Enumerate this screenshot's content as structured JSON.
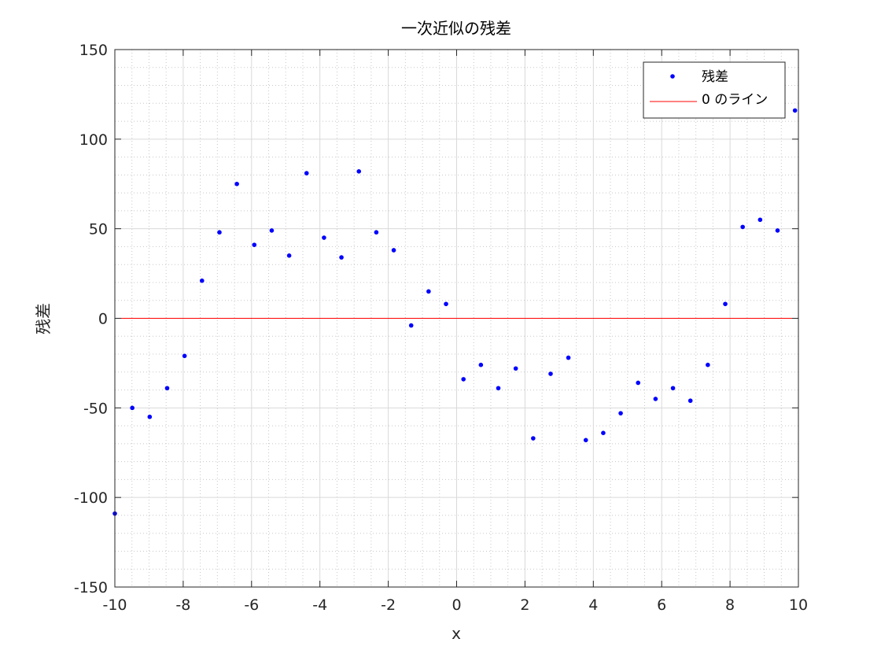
{
  "chart_data": {
    "type": "scatter",
    "title": "一次近似の残差",
    "xlabel": "x",
    "ylabel": "残差",
    "xlim": [
      -10,
      10
    ],
    "ylim": [
      -150,
      150
    ],
    "xticks": [
      -10,
      -8,
      -6,
      -4,
      -2,
      0,
      2,
      4,
      6,
      8,
      10
    ],
    "yticks": [
      -150,
      -100,
      -50,
      0,
      50,
      100,
      150
    ],
    "grid": true,
    "minor_grid": true,
    "legend_position": "top-right",
    "series": [
      {
        "name": "残差",
        "type": "scatter",
        "color": "#0000ff",
        "x": [
          -10,
          -9.49,
          -8.98,
          -8.47,
          -7.96,
          -7.45,
          -6.94,
          -6.43,
          -5.92,
          -5.41,
          -4.9,
          -4.39,
          -3.88,
          -3.37,
          -2.86,
          -2.35,
          -1.84,
          -1.33,
          -0.82,
          -0.31,
          0.2,
          0.71,
          1.22,
          1.73,
          2.24,
          2.75,
          3.27,
          3.78,
          4.29,
          4.8,
          5.31,
          5.82,
          6.33,
          6.84,
          7.35,
          7.86,
          8.37,
          8.88,
          9.39,
          9.9
        ],
        "y": [
          -109,
          -50,
          -55,
          -39,
          -21,
          21,
          48,
          75,
          41,
          49,
          35,
          81,
          45,
          34,
          82,
          48,
          38,
          -4,
          15,
          8,
          -34,
          -26,
          -39,
          -28,
          -67,
          -31,
          -22,
          -68,
          -64,
          -53,
          -36,
          -45,
          -39,
          -46,
          -26,
          8,
          51,
          55,
          49,
          116
        ]
      },
      {
        "name": "0 のライン",
        "type": "line",
        "color": "#ff0000",
        "x": [
          -10,
          10
        ],
        "y": [
          0,
          0
        ]
      }
    ]
  }
}
